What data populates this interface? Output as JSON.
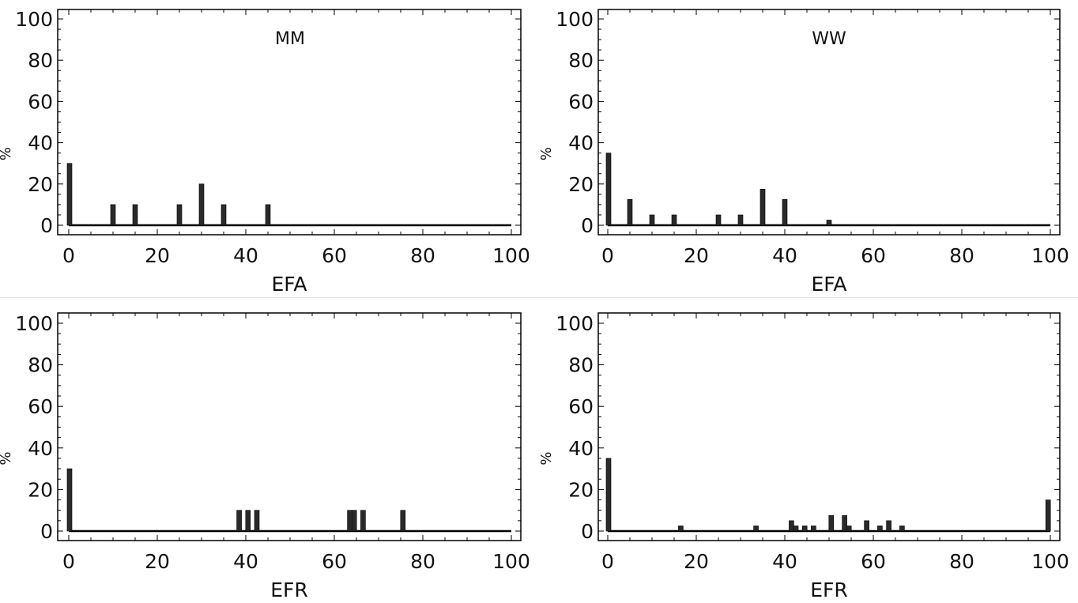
{
  "figure": {
    "colors": {
      "bar": "#2a2a2a",
      "axis": "#000000",
      "background": "#ffffff"
    }
  },
  "chart_data": [
    {
      "type": "bar",
      "title": "MM",
      "xlabel": "EFA",
      "ylabel": "%",
      "xlim": [
        0,
        100
      ],
      "ylim": [
        0,
        100
      ],
      "xticks": [
        "0",
        "20",
        "40",
        "60",
        "80",
        "100"
      ],
      "yticks": [
        "0",
        "20",
        "40",
        "60",
        "80",
        "100"
      ],
      "grid": false,
      "x": [
        0,
        10,
        15,
        25,
        30,
        35,
        45
      ],
      "values": [
        30,
        10,
        10,
        10,
        20,
        10,
        10
      ]
    },
    {
      "type": "bar",
      "title": "WW",
      "xlabel": "EFA",
      "ylabel": "%",
      "xlim": [
        0,
        100
      ],
      "ylim": [
        0,
        100
      ],
      "xticks": [
        "0",
        "20",
        "40",
        "60",
        "80",
        "100"
      ],
      "yticks": [
        "0",
        "20",
        "40",
        "60",
        "80",
        "100"
      ],
      "grid": false,
      "x": [
        0,
        5,
        10,
        15,
        25,
        30,
        35,
        40,
        50
      ],
      "values": [
        35,
        12.5,
        5,
        5,
        5,
        5,
        17.5,
        12.5,
        2.5
      ]
    },
    {
      "type": "bar",
      "title": "",
      "xlabel": "EFR",
      "ylabel": "%",
      "xlim": [
        0,
        100
      ],
      "ylim": [
        0,
        100
      ],
      "xticks": [
        "0",
        "20",
        "40",
        "60",
        "80",
        "100"
      ],
      "yticks": [
        "0",
        "20",
        "40",
        "60",
        "80",
        "100"
      ],
      "grid": false,
      "x": [
        0,
        38.5,
        40.5,
        42.5,
        63.5,
        64.5,
        66.5,
        75.5
      ],
      "values": [
        30,
        10,
        10,
        10,
        10,
        10,
        10,
        10
      ]
    },
    {
      "type": "bar",
      "title": "",
      "xlabel": "EFR",
      "ylabel": "%",
      "xlim": [
        0,
        100
      ],
      "ylim": [
        0,
        100
      ],
      "xticks": [
        "0",
        "20",
        "40",
        "60",
        "80",
        "100"
      ],
      "yticks": [
        "0",
        "20",
        "40",
        "60",
        "80",
        "100"
      ],
      "grid": false,
      "x": [
        0,
        16.5,
        33.5,
        41.5,
        42.5,
        44.5,
        46.5,
        50.5,
        53.5,
        54.5,
        58.5,
        61.5,
        63.5,
        66.5,
        99.5
      ],
      "values": [
        35,
        2.5,
        2.5,
        5,
        2.5,
        2.5,
        2.5,
        7.5,
        7.5,
        2.5,
        5,
        2.5,
        5,
        2.5,
        15
      ]
    }
  ]
}
